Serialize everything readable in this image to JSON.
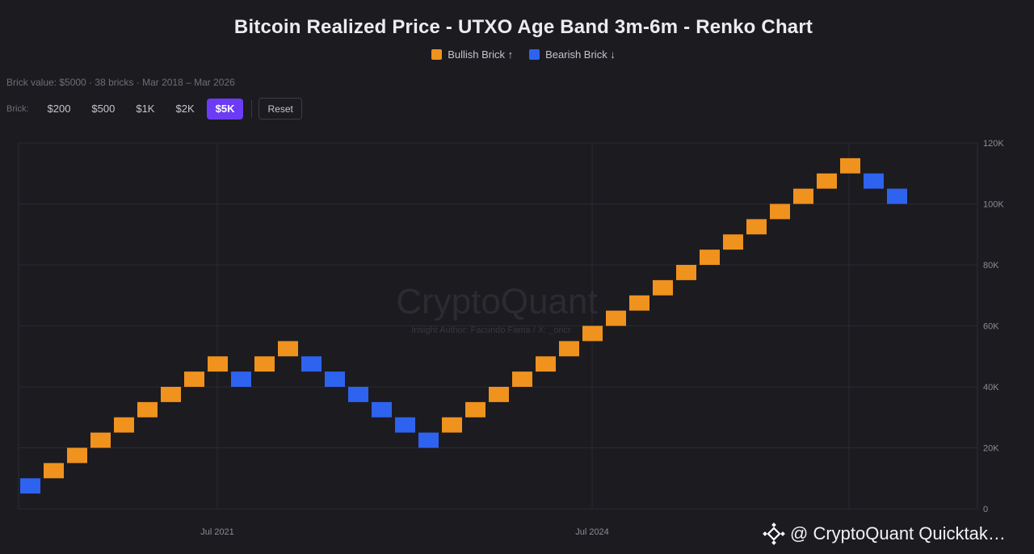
{
  "header": {
    "title": "Bitcoin Realized Price - UTXO Age Band 3m-6m - Renko Chart",
    "legend": [
      {
        "label": "Bullish Brick ↑",
        "color": "#f0921e"
      },
      {
        "label": "Bearish Brick ↓",
        "color": "#2e63f0"
      }
    ],
    "subtitle": "Brick value: $5000 · 38 bricks · Mar 2018 – Mar 2026"
  },
  "controls": {
    "brick_label": "Brick:",
    "options": [
      "$200",
      "$500",
      "$1K",
      "$2K",
      "$5K"
    ],
    "active_option": "$5K",
    "reset_label": "Reset"
  },
  "watermark": {
    "brand": "CryptoQuant",
    "author": "Insight Author: Facundo Fama / X: _oncr"
  },
  "footer_badge": {
    "icon": "binance-diamond-icon",
    "text": "@ CryptoQuant Quicktak…"
  },
  "chart_data": {
    "type": "renko",
    "brick_size": 5000,
    "y_ticks": [
      "120K",
      "100K",
      "80K",
      "60K",
      "40K",
      "20K",
      "0"
    ],
    "y_range": [
      0,
      120000
    ],
    "x_ticks": [
      "Jul 2021",
      "Jul 2024"
    ],
    "grid": true,
    "legend_position": "top-center",
    "colors": {
      "bullish": "#f0921e",
      "bearish": "#2e63f0"
    },
    "bricks": [
      {
        "dir": "down",
        "low": 5000,
        "high": 10000
      },
      {
        "dir": "up",
        "low": 10000,
        "high": 15000
      },
      {
        "dir": "up",
        "low": 15000,
        "high": 20000
      },
      {
        "dir": "up",
        "low": 20000,
        "high": 25000
      },
      {
        "dir": "up",
        "low": 25000,
        "high": 30000
      },
      {
        "dir": "up",
        "low": 30000,
        "high": 35000
      },
      {
        "dir": "up",
        "low": 35000,
        "high": 40000
      },
      {
        "dir": "up",
        "low": 40000,
        "high": 45000
      },
      {
        "dir": "up",
        "low": 45000,
        "high": 50000
      },
      {
        "dir": "down",
        "low": 40000,
        "high": 45000
      },
      {
        "dir": "up",
        "low": 45000,
        "high": 50000
      },
      {
        "dir": "up",
        "low": 50000,
        "high": 55000
      },
      {
        "dir": "down",
        "low": 45000,
        "high": 50000
      },
      {
        "dir": "down",
        "low": 40000,
        "high": 45000
      },
      {
        "dir": "down",
        "low": 35000,
        "high": 40000
      },
      {
        "dir": "down",
        "low": 30000,
        "high": 35000
      },
      {
        "dir": "down",
        "low": 25000,
        "high": 30000
      },
      {
        "dir": "down",
        "low": 20000,
        "high": 25000
      },
      {
        "dir": "up",
        "low": 25000,
        "high": 30000
      },
      {
        "dir": "up",
        "low": 30000,
        "high": 35000
      },
      {
        "dir": "up",
        "low": 35000,
        "high": 40000
      },
      {
        "dir": "up",
        "low": 40000,
        "high": 45000
      },
      {
        "dir": "up",
        "low": 45000,
        "high": 50000
      },
      {
        "dir": "up",
        "low": 50000,
        "high": 55000
      },
      {
        "dir": "up",
        "low": 55000,
        "high": 60000
      },
      {
        "dir": "up",
        "low": 60000,
        "high": 65000
      },
      {
        "dir": "up",
        "low": 65000,
        "high": 70000
      },
      {
        "dir": "up",
        "low": 70000,
        "high": 75000
      },
      {
        "dir": "up",
        "low": 75000,
        "high": 80000
      },
      {
        "dir": "up",
        "low": 80000,
        "high": 85000
      },
      {
        "dir": "up",
        "low": 85000,
        "high": 90000
      },
      {
        "dir": "up",
        "low": 90000,
        "high": 95000
      },
      {
        "dir": "up",
        "low": 95000,
        "high": 100000
      },
      {
        "dir": "up",
        "low": 100000,
        "high": 105000
      },
      {
        "dir": "up",
        "low": 105000,
        "high": 110000
      },
      {
        "dir": "up",
        "low": 110000,
        "high": 115000
      },
      {
        "dir": "down",
        "low": 105000,
        "high": 110000
      },
      {
        "dir": "down",
        "low": 100000,
        "high": 105000
      }
    ]
  }
}
